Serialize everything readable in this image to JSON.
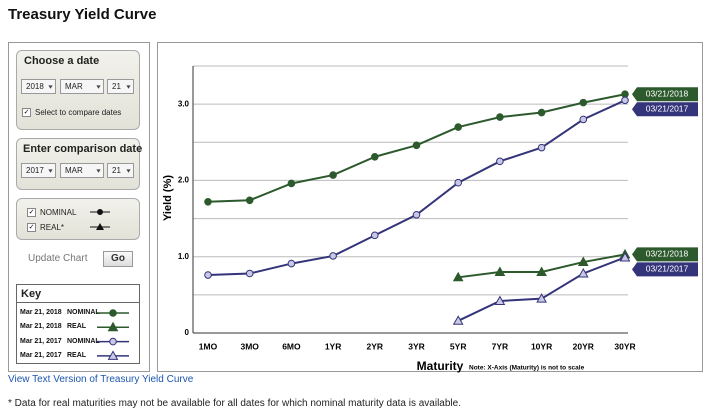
{
  "page": {
    "title": "Treasury Yield Curve",
    "link": "View Text Version of Treasury Yield Curve",
    "footnote": "* Data for real maturities may not be available for all dates for which nominal maturity data is available."
  },
  "controls": {
    "choose_date": {
      "heading": "Choose a date",
      "year": "2018",
      "month": "MAR",
      "day": "21",
      "compare": "Select to compare dates"
    },
    "comparison_date": {
      "heading": "Enter comparison date",
      "year": "2017",
      "month": "MAR",
      "day": "21"
    },
    "filters": [
      "NOMINAL",
      "REAL*"
    ],
    "update": "Update Chart",
    "go": "Go"
  },
  "key": {
    "title": "Key",
    "rows": [
      {
        "date": "Mar 21, 2018",
        "kind": "NOMINAL"
      },
      {
        "date": "Mar 21, 2018",
        "kind": "REAL"
      },
      {
        "date": "Mar 21, 2017",
        "kind": "NOMINAL"
      },
      {
        "date": "Mar 21, 2017",
        "kind": "REAL"
      }
    ]
  },
  "chart_data": {
    "type": "line",
    "x_label": "Maturity",
    "x_note": "Note: X-Axis (Maturity) is not to scale",
    "y_label": "Yield (%)",
    "categories": [
      "1MO",
      "3MO",
      "6MO",
      "1YR",
      "2YR",
      "3YR",
      "5YR",
      "7YR",
      "10YR",
      "20YR",
      "30YR"
    ],
    "ylim": [
      0,
      3.5
    ],
    "yticks": [
      0,
      {
        "value": 1,
        "label": "1.0"
      },
      {
        "value": 2,
        "label": "2.0"
      },
      {
        "value": 3,
        "label": "3.0"
      }
    ],
    "yminor": [
      0.5,
      1.5,
      2.5,
      3.5
    ],
    "grid": true,
    "series": [
      {
        "end_label": "03/21/2018",
        "color": "#2d5a2d",
        "marker": "circle",
        "marker_fill": "#2d5a2d",
        "values": [
          1.72,
          1.74,
          1.96,
          2.07,
          2.31,
          2.46,
          2.7,
          2.83,
          2.89,
          3.02,
          3.13
        ]
      },
      {
        "end_label": "03/21/2018",
        "color": "#2d5a2d",
        "marker": "triangle",
        "marker_fill": "#2d5a2d",
        "values": [
          null,
          null,
          null,
          null,
          null,
          null,
          0.73,
          0.8,
          0.8,
          0.93,
          1.03
        ]
      },
      {
        "end_label": "03/21/2017",
        "color": "#34347a",
        "marker": "circle",
        "marker_fill": "#c8c8e6",
        "values": [
          0.76,
          0.78,
          0.91,
          1.01,
          1.28,
          1.55,
          1.97,
          2.25,
          2.43,
          2.8,
          3.05
        ]
      },
      {
        "end_label": "03/21/2017",
        "color": "#34347a",
        "marker": "triangle",
        "marker_fill": "#c8c8e6",
        "values": [
          null,
          null,
          null,
          null,
          null,
          null,
          0.16,
          0.42,
          0.45,
          0.78,
          0.99
        ]
      }
    ]
  }
}
